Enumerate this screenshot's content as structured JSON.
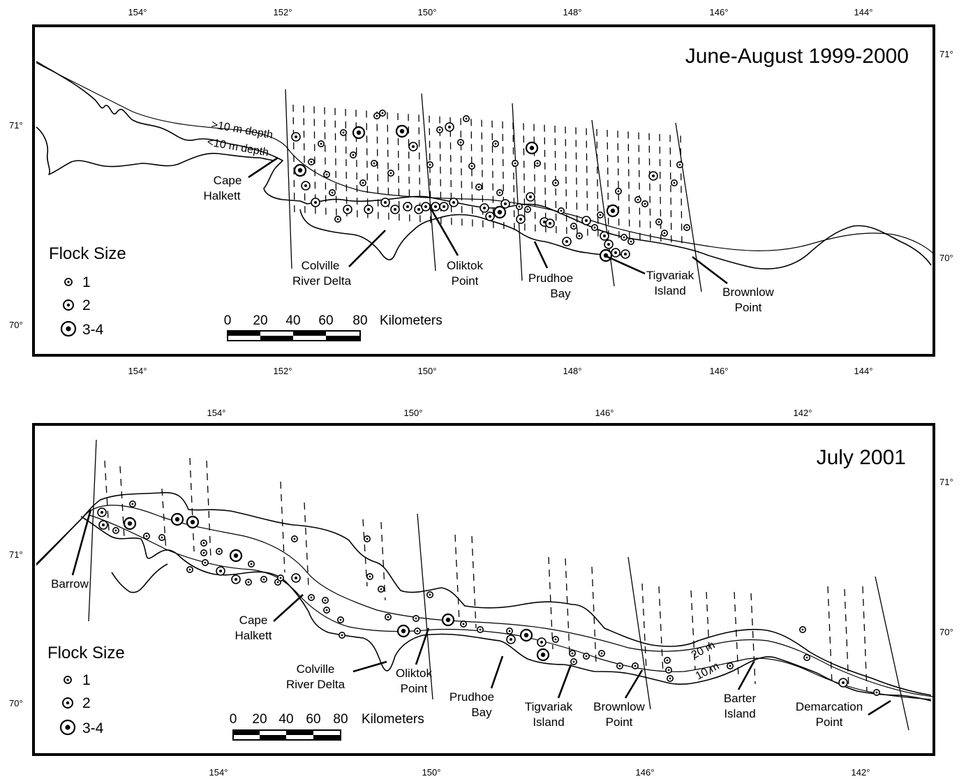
{
  "panels": [
    {
      "title": "June-August 1999-2000",
      "top_lon_ticks": [
        "154°",
        "152°",
        "150°",
        "148°",
        "146°",
        "144°"
      ],
      "bottom_lon_ticks": [
        "154°",
        "152°",
        "150°",
        "148°",
        "146°",
        "144°"
      ],
      "left_lat_ticks": [
        "71°",
        "70°"
      ],
      "right_lat_ticks": [
        "71°",
        "70°"
      ],
      "depth_labels": [
        ">10 m depth",
        "<10 m depth"
      ],
      "places": [
        {
          "lines": [
            "Cape",
            "Halkett"
          ]
        },
        {
          "lines": [
            "Colville",
            "River Delta"
          ]
        },
        {
          "lines": [
            "Oliktok",
            "Point"
          ]
        },
        {
          "lines": [
            "Prudhoe",
            "Bay"
          ]
        },
        {
          "lines": [
            "Tigvariak",
            "Island"
          ]
        },
        {
          "lines": [
            "Brownlow",
            "Point"
          ]
        }
      ],
      "legend": {
        "title": "Flock Size",
        "items": [
          "1",
          "2",
          "3-4"
        ]
      },
      "scale": {
        "ticks": [
          "0",
          "20",
          "40",
          "60",
          "80"
        ],
        "unit": "Kilometers"
      }
    },
    {
      "title": "July 2001",
      "top_lon_ticks": [
        "154°",
        "150°",
        "146°",
        "142°"
      ],
      "bottom_lon_ticks": [
        "154°",
        "150°",
        "146°",
        "142°"
      ],
      "left_lat_ticks": [
        "71°",
        "70°"
      ],
      "right_lat_ticks": [
        "71°",
        "70°"
      ],
      "depth_labels": [
        "20 m",
        "10 m"
      ],
      "places": [
        {
          "lines": [
            "Barrow"
          ]
        },
        {
          "lines": [
            "Cape",
            "Halkett"
          ]
        },
        {
          "lines": [
            "Colville",
            "River Delta"
          ]
        },
        {
          "lines": [
            "Oliktok",
            "Point"
          ]
        },
        {
          "lines": [
            "Prudhoe",
            "Bay"
          ]
        },
        {
          "lines": [
            "Tigvariak",
            "Island"
          ]
        },
        {
          "lines": [
            "Brownlow",
            "Point"
          ]
        },
        {
          "lines": [
            "Barter",
            "Island"
          ]
        },
        {
          "lines": [
            "Demarcation",
            "Point"
          ]
        }
      ],
      "legend": {
        "title": "Flock Size",
        "items": [
          "1",
          "2",
          "3-4"
        ]
      },
      "scale": {
        "ticks": [
          "0",
          "20",
          "40",
          "60",
          "80"
        ],
        "unit": "Kilometers"
      }
    }
  ]
}
